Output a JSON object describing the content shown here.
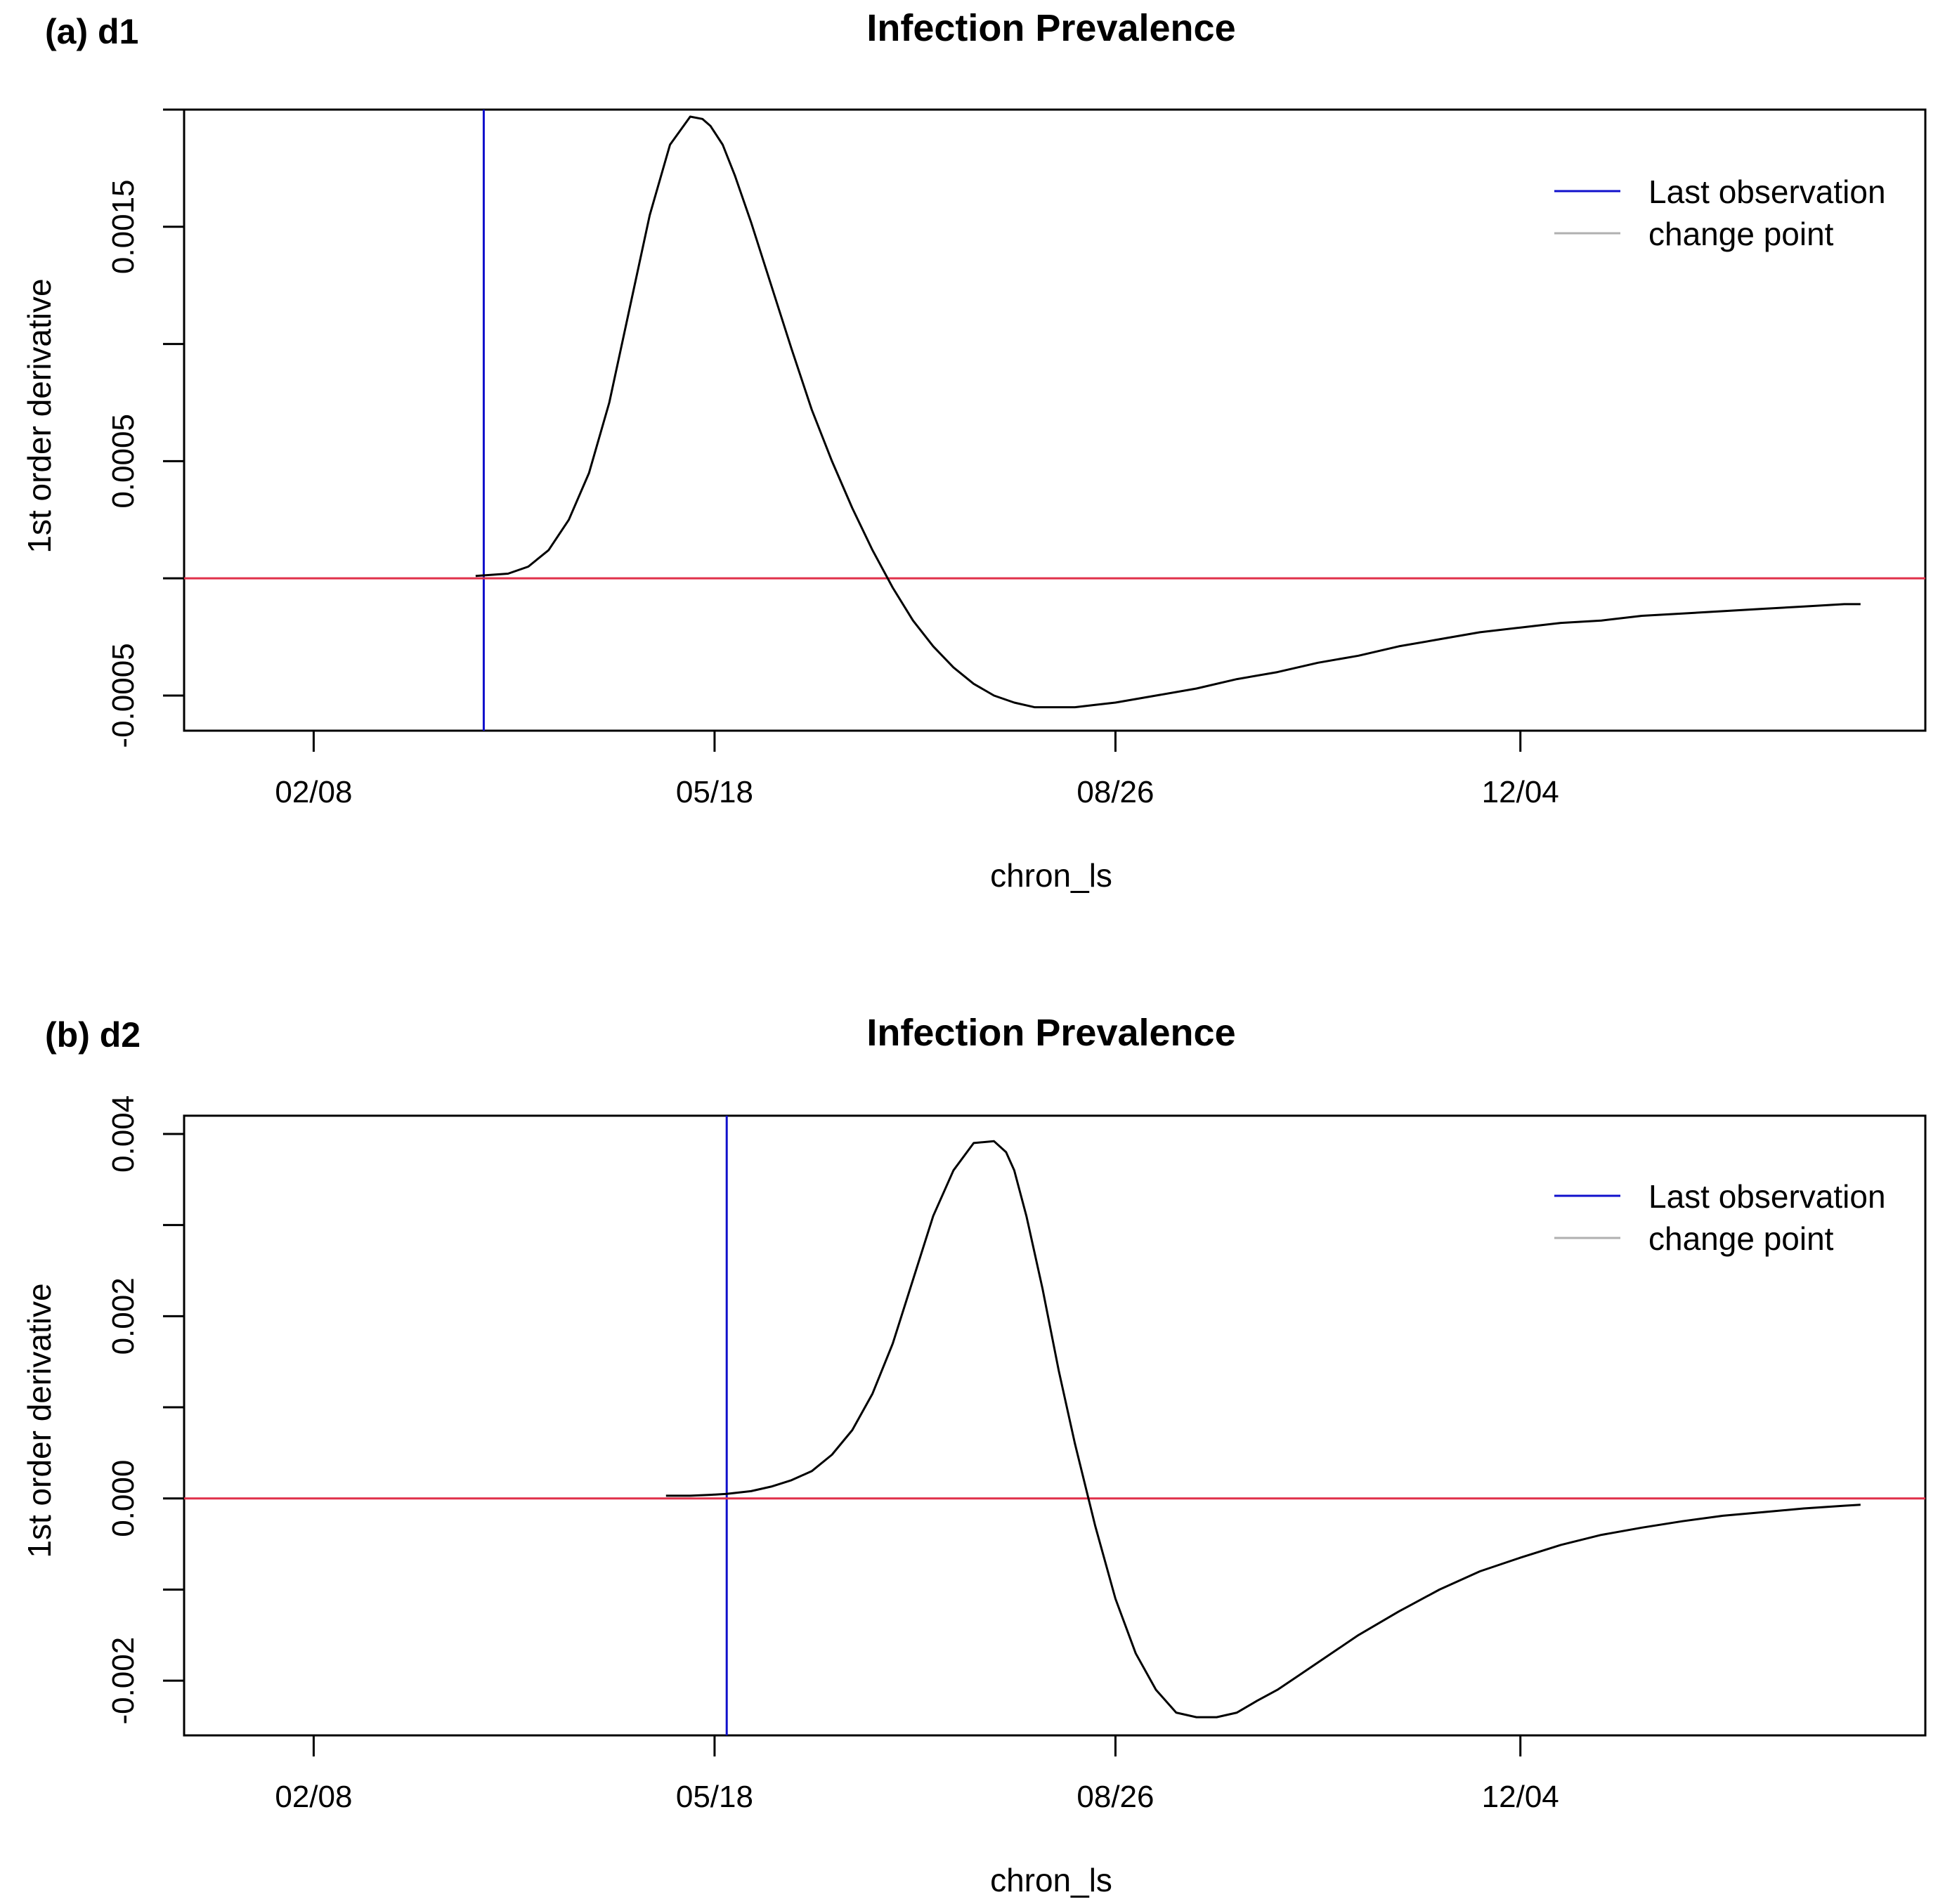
{
  "chart_data": [
    {
      "type": "line",
      "panel_label": "(a)  d1",
      "title": "Infection Prevalence",
      "xlabel": "chron_ls",
      "ylabel": "1st order derivative",
      "xlim": [
        0,
        430
      ],
      "ylim": [
        -0.00065,
        0.002
      ],
      "x_ticks": [
        {
          "value": 32,
          "label": "02/08"
        },
        {
          "value": 131,
          "label": "05/18"
        },
        {
          "value": 230,
          "label": "08/26"
        },
        {
          "value": 330,
          "label": "12/04"
        }
      ],
      "y_ticks": [
        {
          "value": -0.0005,
          "label": "-0.0005",
          "labeled": true
        },
        {
          "value": 0.0,
          "label": "",
          "labeled": false
        },
        {
          "value": 0.0005,
          "label": "0.0005",
          "labeled": true
        },
        {
          "value": 0.001,
          "label": "",
          "labeled": false
        },
        {
          "value": 0.0015,
          "label": "0.0015",
          "labeled": true
        },
        {
          "value": 0.002,
          "label": "",
          "labeled": false
        }
      ],
      "reference_lines": [
        {
          "orientation": "vertical",
          "value": 74,
          "color": "#1010cc",
          "name": "last-observation-line"
        },
        {
          "orientation": "horizontal",
          "value": 0,
          "color": "#e0304a",
          "name": "zero-line"
        }
      ],
      "legend": {
        "position": "top-right",
        "entries": [
          {
            "label": "Last observation",
            "color": "#1010cc"
          },
          {
            "label": "change point",
            "color": "#b0b0b0"
          }
        ]
      },
      "series": [
        {
          "name": "first-derivative",
          "color": "#000000",
          "x": [
            72,
            80,
            85,
            90,
            95,
            100,
            105,
            110,
            115,
            120,
            125,
            128,
            130,
            133,
            136,
            140,
            145,
            150,
            155,
            160,
            165,
            170,
            175,
            180,
            185,
            190,
            195,
            200,
            205,
            210,
            215,
            220,
            225,
            230,
            240,
            250,
            260,
            270,
            280,
            290,
            300,
            310,
            320,
            330,
            340,
            350,
            360,
            370,
            380,
            390,
            400,
            410,
            414
          ],
          "y": [
            1e-05,
            2e-05,
            5e-05,
            0.00012,
            0.00025,
            0.00045,
            0.00075,
            0.00115,
            0.00155,
            0.00185,
            0.00197,
            0.00196,
            0.00193,
            0.00185,
            0.00172,
            0.00152,
            0.00125,
            0.00098,
            0.00072,
            0.0005,
            0.0003,
            0.00012,
            -4e-05,
            -0.00018,
            -0.00029,
            -0.00038,
            -0.00045,
            -0.0005,
            -0.00053,
            -0.00055,
            -0.00055,
            -0.00055,
            -0.00054,
            -0.00053,
            -0.0005,
            -0.00047,
            -0.00043,
            -0.0004,
            -0.00036,
            -0.00033,
            -0.00029,
            -0.00026,
            -0.00023,
            -0.00021,
            -0.00019,
            -0.00018,
            -0.00016,
            -0.00015,
            -0.00014,
            -0.00013,
            -0.00012,
            -0.00011,
            -0.00011
          ]
        }
      ]
    },
    {
      "type": "line",
      "panel_label": "(b)  d2",
      "title": "Infection Prevalence",
      "xlabel": "chron_ls",
      "ylabel": "1st order derivative",
      "xlim": [
        0,
        430
      ],
      "ylim": [
        -0.0026,
        0.0042
      ],
      "x_ticks": [
        {
          "value": 32,
          "label": "02/08"
        },
        {
          "value": 131,
          "label": "05/18"
        },
        {
          "value": 230,
          "label": "08/26"
        },
        {
          "value": 330,
          "label": "12/04"
        }
      ],
      "y_ticks": [
        {
          "value": -0.002,
          "label": "-0.002",
          "labeled": true
        },
        {
          "value": -0.001,
          "label": "",
          "labeled": false
        },
        {
          "value": 0.0,
          "label": "0.000",
          "labeled": true
        },
        {
          "value": 0.001,
          "label": "",
          "labeled": false
        },
        {
          "value": 0.002,
          "label": "0.002",
          "labeled": true
        },
        {
          "value": 0.003,
          "label": "",
          "labeled": false
        },
        {
          "value": 0.004,
          "label": "0.004",
          "labeled": true
        }
      ],
      "reference_lines": [
        {
          "orientation": "vertical",
          "value": 134,
          "color": "#1010cc",
          "name": "last-observation-line"
        },
        {
          "orientation": "horizontal",
          "value": 0,
          "color": "#e0304a",
          "name": "zero-line"
        }
      ],
      "legend": {
        "position": "top-right",
        "entries": [
          {
            "label": "Last observation",
            "color": "#1010cc"
          },
          {
            "label": "change point",
            "color": "#b0b0b0"
          }
        ]
      },
      "series": [
        {
          "name": "first-derivative",
          "color": "#000000",
          "x": [
            119,
            125,
            130,
            134,
            140,
            145,
            150,
            155,
            160,
            165,
            170,
            175,
            180,
            185,
            190,
            195,
            200,
            203,
            205,
            208,
            212,
            216,
            220,
            225,
            230,
            235,
            240,
            245,
            250,
            255,
            260,
            265,
            270,
            275,
            280,
            285,
            290,
            300,
            310,
            320,
            330,
            340,
            350,
            360,
            370,
            380,
            390,
            400,
            410,
            414
          ],
          "y": [
            3e-05,
            3e-05,
            4e-05,
            5e-05,
            8e-05,
            0.00013,
            0.0002,
            0.0003,
            0.00048,
            0.00075,
            0.00115,
            0.0017,
            0.0024,
            0.0031,
            0.0036,
            0.0039,
            0.00392,
            0.0038,
            0.0036,
            0.0031,
            0.0023,
            0.0014,
            0.0006,
            -0.0003,
            -0.0011,
            -0.0017,
            -0.0021,
            -0.00235,
            -0.0024,
            -0.0024,
            -0.00235,
            -0.00222,
            -0.0021,
            -0.00195,
            -0.0018,
            -0.00165,
            -0.0015,
            -0.00124,
            -0.001,
            -0.0008,
            -0.00065,
            -0.00051,
            -0.0004,
            -0.00032,
            -0.00025,
            -0.00019,
            -0.00015,
            -0.00011,
            -8e-05,
            -7e-05
          ]
        }
      ]
    }
  ]
}
